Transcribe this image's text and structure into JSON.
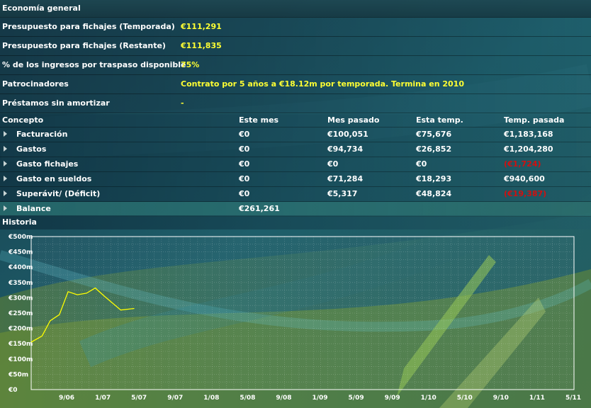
{
  "sections": {
    "general": "Economía general",
    "history": "Historia"
  },
  "general_rows": [
    {
      "label": "Presupuesto para fichajes (Temporada)",
      "value": "€111,291"
    },
    {
      "label": "Presupuesto para fichajes (Restante)",
      "value": "€111,835"
    },
    {
      "label": "% de los ingresos por traspaso disponible",
      "value": "75%"
    },
    {
      "label": "Patrocinadores",
      "value": "Contrato por 5 años a €18.12m por temporada. Termina en 2010"
    },
    {
      "label": "Préstamos sin amortizar",
      "value": "-"
    }
  ],
  "finance": {
    "headers": [
      "Concepto",
      "Este mes",
      "Mes pasado",
      "Esta temp.",
      "Temp. pasada"
    ],
    "rows": [
      {
        "concept": "Facturación",
        "cells": [
          "€0",
          "€100,051",
          "€75,676",
          "€1,183,168"
        ],
        "negative": [
          false,
          false,
          false,
          false
        ]
      },
      {
        "concept": "Gastos",
        "cells": [
          "€0",
          "€94,734",
          "€26,852",
          "€1,204,280"
        ],
        "negative": [
          false,
          false,
          false,
          false
        ]
      },
      {
        "concept": "Gasto fichajes",
        "cells": [
          "€0",
          "€0",
          "€0",
          "(€1,724)"
        ],
        "negative": [
          false,
          false,
          false,
          true
        ]
      },
      {
        "concept": "Gasto en sueldos",
        "cells": [
          "€0",
          "€71,284",
          "€18,293",
          "€940,600"
        ],
        "negative": [
          false,
          false,
          false,
          false
        ]
      },
      {
        "concept": "Superávit/ (Déficit)",
        "cells": [
          "€0",
          "€5,317",
          "€48,824",
          "(€19,387)"
        ],
        "negative": [
          false,
          false,
          false,
          true
        ]
      }
    ],
    "balance": {
      "concept": "Balance",
      "value": "€261,261"
    }
  },
  "colors": {
    "highlight": "#ffff33",
    "negative": "#d01010",
    "line": "#ffff00"
  },
  "chart_data": {
    "type": "line",
    "y_ticks": [
      "€0",
      "€50m",
      "€100m",
      "€150m",
      "€200m",
      "€250m",
      "€300m",
      "€350m",
      "€400m",
      "€450m",
      "€500m"
    ],
    "x_ticks": [
      "9/06",
      "1/07",
      "5/07",
      "9/07",
      "1/08",
      "5/08",
      "9/08",
      "1/09",
      "5/09",
      "9/09",
      "1/10",
      "5/10",
      "9/10",
      "1/11",
      "5/11"
    ],
    "ylim": [
      0,
      500
    ],
    "xlim": [
      0,
      1
    ],
    "grid": true,
    "series": [
      {
        "values": [
          {
            "x": 0.0,
            "y": 155
          },
          {
            "x": 0.02,
            "y": 175
          },
          {
            "x": 0.035,
            "y": 225
          },
          {
            "x": 0.052,
            "y": 245
          },
          {
            "x": 0.068,
            "y": 320
          },
          {
            "x": 0.085,
            "y": 310
          },
          {
            "x": 0.102,
            "y": 315
          },
          {
            "x": 0.118,
            "y": 332
          },
          {
            "x": 0.135,
            "y": 305
          },
          {
            "x": 0.165,
            "y": 260
          },
          {
            "x": 0.18,
            "y": 263
          },
          {
            "x": 0.19,
            "y": 265
          }
        ]
      }
    ]
  }
}
